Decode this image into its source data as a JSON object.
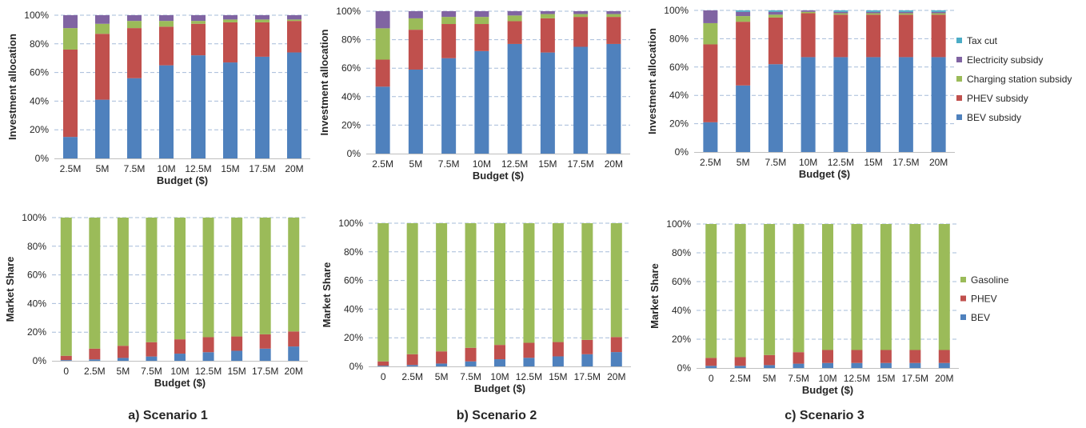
{
  "colors": {
    "BEV": "#4f81bd",
    "PHEV": "#c0504d",
    "Charging station subsidy": "#9bbb59",
    "Electricity subsidy": "#8064a2",
    "Tax cut": "#4bacc6",
    "Gasoline": "#9bbb59",
    "gridline": "#a6bcd9"
  },
  "captions": [
    "a) Scenario 1",
    "b) Scenario 2",
    "c) Scenario 3"
  ],
  "legends": {
    "investment": [
      "Tax cut",
      "Electricity subsidy",
      "Charging station subsidy",
      "PHEV subsidy",
      "BEV subsidy"
    ],
    "market": [
      "Gasoline",
      "PHEV",
      "BEV"
    ]
  },
  "chart_data": [
    {
      "id": "s1-investment",
      "type": "bar",
      "stacked": true,
      "scenario": "a) Scenario 1",
      "xlabel": "Budget ($)",
      "ylabel": "Investment allocation",
      "ylim": [
        0,
        100
      ],
      "yticks": [
        "0%",
        "20%",
        "40%",
        "60%",
        "80%",
        "100%"
      ],
      "gridlines": "dashed horizontal",
      "categories": [
        "2.5M",
        "5M",
        "7.5M",
        "10M",
        "12.5M",
        "15M",
        "17.5M",
        "20M"
      ],
      "series": [
        {
          "name": "BEV subsidy",
          "values": [
            15,
            41,
            56,
            65,
            72,
            67,
            71,
            74
          ]
        },
        {
          "name": "PHEV subsidy",
          "values": [
            61,
            46,
            35,
            27,
            22,
            28,
            24,
            22
          ]
        },
        {
          "name": "Charging station subsidy",
          "values": [
            15,
            7,
            5,
            4,
            2,
            2,
            2,
            1
          ]
        },
        {
          "name": "Electricity subsidy",
          "values": [
            9,
            6,
            4,
            4,
            4,
            3,
            3,
            3
          ]
        },
        {
          "name": "Tax cut",
          "values": [
            0,
            0,
            0,
            0,
            0,
            0,
            0,
            0
          ]
        }
      ]
    },
    {
      "id": "s2-investment",
      "type": "bar",
      "stacked": true,
      "scenario": "b) Scenario 2",
      "xlabel": "Budget ($)",
      "ylabel": "Investment allocation",
      "ylim": [
        0,
        100
      ],
      "yticks": [
        "0%",
        "20%",
        "40%",
        "60%",
        "80%",
        "100%"
      ],
      "gridlines": "dashed horizontal",
      "categories": [
        "2.5M",
        "5M",
        "7.5M",
        "10M",
        "12.5M",
        "15M",
        "17.5M",
        "20M"
      ],
      "series": [
        {
          "name": "BEV subsidy",
          "values": [
            47,
            59,
            67,
            72,
            77,
            71,
            75,
            77
          ]
        },
        {
          "name": "PHEV subsidy",
          "values": [
            19,
            28,
            24,
            19,
            16,
            24,
            21,
            19
          ]
        },
        {
          "name": "Charging station subsidy",
          "values": [
            22,
            8,
            5,
            5,
            4,
            3,
            2,
            2
          ]
        },
        {
          "name": "Electricity subsidy",
          "values": [
            12,
            5,
            4,
            4,
            3,
            2,
            2,
            2
          ]
        },
        {
          "name": "Tax cut",
          "values": [
            0,
            0,
            0,
            0,
            0,
            0,
            0,
            0
          ]
        }
      ]
    },
    {
      "id": "s3-investment",
      "type": "bar",
      "stacked": true,
      "scenario": "c) Scenario 3",
      "xlabel": "Budget ($)",
      "ylabel": "Investment allocation",
      "ylim": [
        0,
        100
      ],
      "yticks": [
        "0%",
        "20%",
        "40%",
        "60%",
        "80%",
        "100%"
      ],
      "gridlines": "dashed horizontal",
      "legend": "right",
      "categories": [
        "2.5M",
        "5M",
        "7.5M",
        "10M",
        "12.5M",
        "15M",
        "17.5M",
        "20M"
      ],
      "series": [
        {
          "name": "BEV subsidy",
          "values": [
            21,
            47,
            62,
            67,
            67,
            67,
            67,
            67
          ]
        },
        {
          "name": "PHEV subsidy",
          "values": [
            55,
            45,
            33,
            31,
            30,
            30,
            30,
            30
          ]
        },
        {
          "name": "Charging station subsidy",
          "values": [
            15,
            4,
            2,
            1,
            1,
            1,
            1,
            1
          ]
        },
        {
          "name": "Electricity subsidy",
          "values": [
            9,
            3,
            2,
            1,
            1,
            1,
            1,
            1
          ]
        },
        {
          "name": "Tax cut",
          "values": [
            0,
            1,
            1,
            0,
            1,
            1,
            1,
            1
          ]
        }
      ]
    },
    {
      "id": "s1-market",
      "type": "bar",
      "stacked": true,
      "scenario": "a) Scenario 1",
      "xlabel": "Budget ($)",
      "ylabel": "Market Share",
      "ylim": [
        0,
        100
      ],
      "yticks": [
        "0%",
        "20%",
        "40%",
        "60%",
        "80%",
        "100%"
      ],
      "gridlines": "dashed horizontal",
      "categories": [
        "0",
        "2.5M",
        "5M",
        "7.5M",
        "10M",
        "12.5M",
        "15M",
        "17.5M",
        "20M"
      ],
      "series": [
        {
          "name": "BEV",
          "values": [
            0.5,
            1,
            2,
            3,
            5,
            6,
            7,
            8.5,
            10
          ]
        },
        {
          "name": "PHEV",
          "values": [
            3,
            7.5,
            8.5,
            10,
            10,
            10.5,
            10,
            10,
            10.5
          ]
        },
        {
          "name": "Gasoline",
          "values": [
            96.5,
            91.5,
            89.5,
            87,
            85,
            83.5,
            83,
            81.5,
            79.5
          ]
        }
      ]
    },
    {
      "id": "s2-market",
      "type": "bar",
      "stacked": true,
      "scenario": "b) Scenario 2",
      "xlabel": "Budget ($)",
      "ylabel": "Market Share",
      "ylim": [
        0,
        100
      ],
      "yticks": [
        "0%",
        "20%",
        "40%",
        "60%",
        "80%",
        "100%"
      ],
      "gridlines": "dashed horizontal",
      "categories": [
        "0",
        "2.5M",
        "5M",
        "7.5M",
        "10M",
        "12.5M",
        "15M",
        "17.5M",
        "20M"
      ],
      "series": [
        {
          "name": "BEV",
          "values": [
            0.5,
            1,
            2,
            3.5,
            5,
            6,
            7,
            8.5,
            10
          ]
        },
        {
          "name": "PHEV",
          "values": [
            3,
            7.5,
            8.5,
            9.5,
            10,
            10.5,
            10,
            10,
            10.5
          ]
        },
        {
          "name": "Gasoline",
          "values": [
            96.5,
            91.5,
            89.5,
            87,
            85,
            83.5,
            83,
            81.5,
            79.5
          ]
        }
      ]
    },
    {
      "id": "s3-market",
      "type": "bar",
      "stacked": true,
      "scenario": "c) Scenario 3",
      "xlabel": "Budget ($)",
      "ylabel": "Market Share",
      "ylim": [
        0,
        100
      ],
      "yticks": [
        "0%",
        "20%",
        "40%",
        "60%",
        "80%",
        "100%"
      ],
      "gridlines": "dashed horizontal",
      "legend": "right",
      "categories": [
        "0",
        "2.5M",
        "5M",
        "7.5M",
        "10M",
        "12.5M",
        "15M",
        "17.5M",
        "20M"
      ],
      "series": [
        {
          "name": "BEV",
          "values": [
            1.5,
            1.5,
            2,
            3,
            3.5,
            3.5,
            3.5,
            3.5,
            3.5
          ]
        },
        {
          "name": "PHEV",
          "values": [
            5.5,
            6,
            7,
            8,
            9,
            9,
            9,
            9,
            9
          ]
        },
        {
          "name": "Gasoline",
          "values": [
            93,
            92.5,
            91,
            89,
            87.5,
            87.5,
            87.5,
            87.5,
            87.5
          ]
        }
      ]
    }
  ]
}
